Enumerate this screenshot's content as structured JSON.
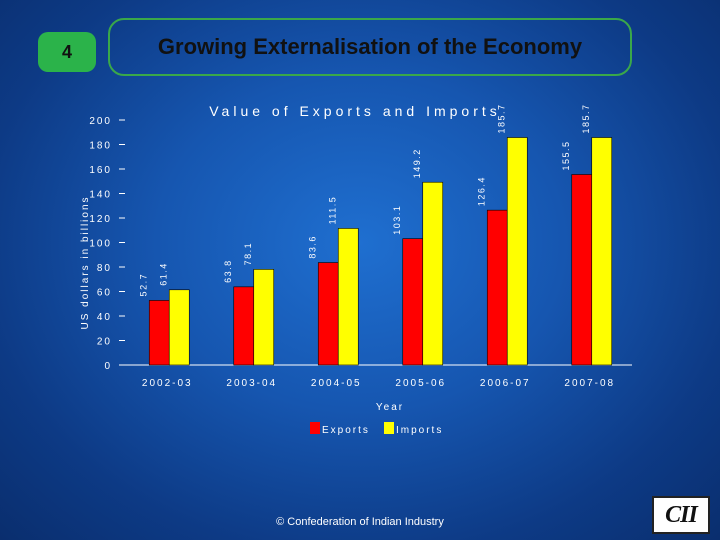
{
  "slide": {
    "number": "4",
    "title": "Growing Externalisation of the Economy"
  },
  "footer": {
    "copyright": "© Confederation of Indian Industry",
    "logo_text": "CII"
  },
  "colors": {
    "exports": "#ff0000",
    "imports": "#ffff00",
    "accent": "#2bb34a"
  },
  "chart_data": {
    "type": "bar",
    "title": "Value of Exports and Imports",
    "xlabel": "Year",
    "ylabel": "US dollars in billions",
    "ylim": [
      0,
      200
    ],
    "yticks": [
      0,
      20,
      40,
      60,
      80,
      100,
      120,
      140,
      160,
      180,
      200
    ],
    "ytick_labels": [
      "0",
      "20",
      "40",
      "60",
      "80",
      "100",
      "120",
      "140",
      "160",
      "180",
      "200"
    ],
    "categories": [
      "2002-03",
      "2003-04",
      "2004-05",
      "2005-06",
      "2006-07",
      "2007-08"
    ],
    "series": [
      {
        "name": "Exports",
        "values": [
          52.7,
          63.8,
          83.6,
          103.1,
          126.4,
          155.5
        ],
        "labels": [
          "52.7",
          "63.8",
          "83.6",
          "103.1",
          "126.4",
          "155.5"
        ]
      },
      {
        "name": "Imports",
        "values": [
          61.4,
          78.1,
          111.5,
          149.2,
          185.7,
          185.7
        ],
        "labels": [
          "61.4",
          "78.1",
          "111.5",
          "149.2",
          "185.7",
          "185.7"
        ]
      }
    ],
    "legend_position": "bottom"
  }
}
